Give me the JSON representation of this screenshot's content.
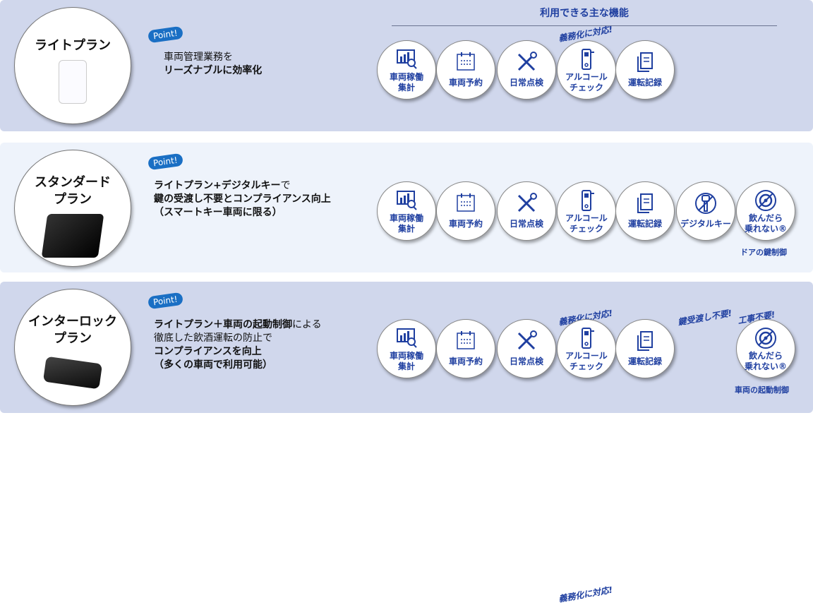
{
  "features_title": "利用できる主な機能",
  "point_label": "Point!",
  "feature_defs": {
    "usage": {
      "label": [
        "車両稼働",
        "集計"
      ],
      "icon": "chart-search-icon"
    },
    "reserve": {
      "label": [
        "車両予約"
      ],
      "icon": "calendar-icon"
    },
    "inspect": {
      "label": [
        "日常点検"
      ],
      "icon": "tools-icon"
    },
    "alcohol": {
      "label": [
        "アルコール",
        "チェック"
      ],
      "icon": "alcohol-checker-icon"
    },
    "log": {
      "label": [
        "運転記録"
      ],
      "icon": "document-icon"
    },
    "digikey": {
      "label": [
        "デジタルキー"
      ],
      "icon": "key-icon"
    },
    "interlock": {
      "label": [
        "飲んだら",
        "乗れない®"
      ],
      "icon": "no-steering-wheel-icon"
    }
  },
  "plans": [
    {
      "name": [
        "ライトプラン"
      ],
      "device": "smartphone",
      "desc": [
        [
          {
            "t": "車両管理業務を",
            "b": false
          }
        ],
        [
          {
            "t": "リーズナブルに効率化",
            "b": true
          }
        ]
      ],
      "features": [
        "usage",
        "reserve",
        "inspect",
        "alcohol",
        "log"
      ],
      "badges": {
        "alcohol": "義務化に対応!"
      },
      "captions": {}
    },
    {
      "name": [
        "スタンダード",
        "プラン"
      ],
      "device": "digital-key-box",
      "desc": [
        [
          {
            "t": "ライトプラン+デジタルキー",
            "b": true
          },
          {
            "t": "で",
            "b": false
          }
        ],
        [
          {
            "t": "鍵の受渡し不要とコンプライアンス向上",
            "b": true
          }
        ],
        [
          {
            "t": "（スマートキー車両に限る）",
            "b": true
          }
        ]
      ],
      "features": [
        "usage",
        "reserve",
        "inspect",
        "alcohol",
        "log",
        "digikey",
        "interlock"
      ],
      "badges": {
        "alcohol": "義務化に対応!",
        "digikey": "鍵受渡し不要!",
        "interlock": "工事不要!"
      },
      "captions": {
        "interlock": "ドアの鍵制御"
      }
    },
    {
      "name": [
        "インターロック",
        "プラン"
      ],
      "device": "interlock-unit",
      "desc": [
        [
          {
            "t": "ライトプラン＋車両の起動制御",
            "b": true
          },
          {
            "t": "による",
            "b": false
          }
        ],
        [
          {
            "t": "徹底した飲酒運転の防止で",
            "b": false
          }
        ],
        [
          {
            "t": "コンプライアンスを向上",
            "b": true
          }
        ],
        [
          {
            "t": "（多くの車両で利用可能）",
            "b": true
          }
        ]
      ],
      "features": [
        "usage",
        "reserve",
        "inspect",
        "alcohol",
        "log",
        null,
        "interlock"
      ],
      "badges": {
        "alcohol": "義務化に対応!"
      },
      "captions": {
        "interlock": "車両の起動制御"
      }
    }
  ]
}
